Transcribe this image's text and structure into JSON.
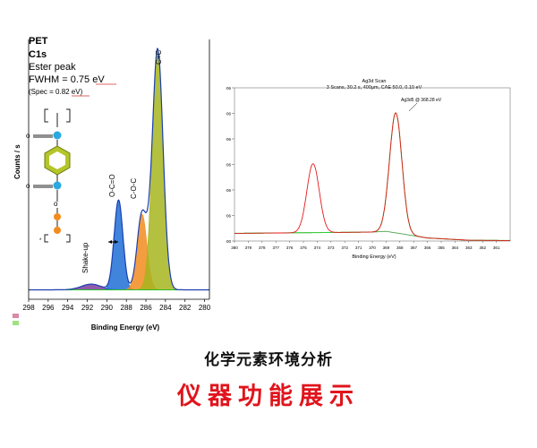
{
  "chart_data": [
    {
      "type": "line",
      "title_lines": [
        "PET",
        "C1s",
        "Ester peak"
      ],
      "fwhm_text": "FWHM = 0.75 eV",
      "spec_text": "(Spec = 0.82 eV)",
      "xlabel": "Binding Energy (eV)",
      "ylabel": "Counts / s",
      "xlim": [
        298,
        279.5
      ],
      "x_ticks": [
        "298",
        "296",
        "294",
        "292",
        "290",
        "288",
        "286",
        "284",
        "282",
        "280"
      ],
      "peak_labels": [
        "Shake-up",
        "O-C=O",
        "C-O-C",
        "C=C"
      ],
      "background_y": 10,
      "ylim": [
        0,
        275
      ],
      "series": [
        {
          "label": "Shake-up",
          "color": "#7b3f9e",
          "center": 291.6,
          "height": 6,
          "width": 1.0
        },
        {
          "label": "O-C=O",
          "color": "#1f6fd6",
          "center": 288.8,
          "height": 95,
          "width": 0.45
        },
        {
          "label": "C-O-C",
          "color": "#f28c1e",
          "center": 286.4,
          "height": 80,
          "width": 0.5
        },
        {
          "label": "C=C",
          "color": "#a7b51e",
          "center": 284.8,
          "height": 255,
          "width": 0.55
        }
      ],
      "legend_swatches": [
        "#d88aa8",
        "#9ee27f"
      ]
    },
    {
      "type": "line",
      "header_lines": [
        "Ag3d Scan",
        "3 Scans, 30.2 s, 400µm, CAE 50.0, 0.10 eV"
      ],
      "peak_annotation": "Ag3d5 @ 368.28 eV",
      "xlabel": "Binding Energy (eV)",
      "xlim": [
        380,
        360
      ],
      "x_ticks": [
        "380",
        "379",
        "378",
        "377",
        "376",
        "375",
        "374",
        "373",
        "372",
        "371",
        "370",
        "369",
        "368",
        "367",
        "366",
        "365",
        "364",
        "363",
        "362",
        "361"
      ],
      "y_ticks": [
        "0.00E+00",
        "1.00E+06",
        "2.00E+06",
        "3.00E+06",
        "4.00E+06",
        "5.00E+06",
        "6.00E+06"
      ],
      "ylim": [
        0,
        6000000
      ],
      "background": {
        "x": [
          380,
          370,
          369,
          366,
          363,
          360
        ],
        "y": [
          300000,
          350000,
          380000,
          120000,
          30000,
          20000
        ]
      },
      "peaks": [
        {
          "center": 374.3,
          "height": 2700000,
          "width": 0.45
        },
        {
          "center": 368.3,
          "height": 4700000,
          "width": 0.45
        }
      ],
      "fit_peak": {
        "center": 368.3,
        "height": 4700000,
        "width": 0.45
      },
      "line_color": "#e41a1c",
      "fit_color": "#33cc33",
      "background_color": "#3a9a3a"
    }
  ],
  "captions": {
    "subtitle": "化学元素环境分析",
    "title": "仪器功能展示"
  }
}
